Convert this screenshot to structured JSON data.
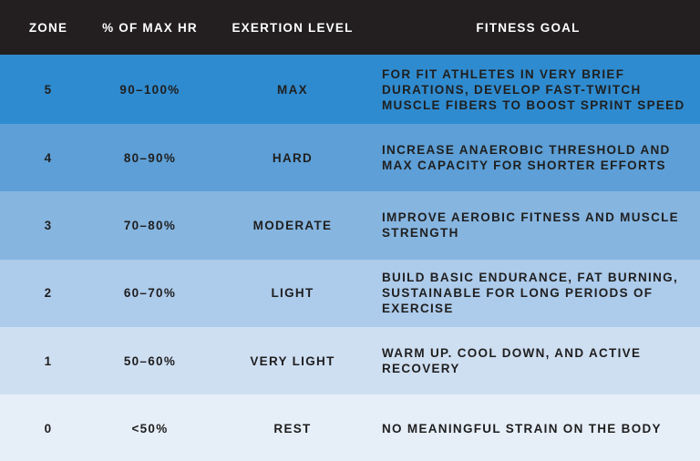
{
  "headers": {
    "zone": "ZONE",
    "max_hr": "% OF MAX HR",
    "exertion": "EXERTION LEVEL",
    "goal": "FITNESS GOAL"
  },
  "rows": [
    {
      "zone": "5",
      "max_hr": "90–100%",
      "exertion": "MAX",
      "goal": "FOR FIT ATHLETES IN VERY BRIEF DURATIONS, DEVELOP FAST-TWITCH MUSCLE FIBERS TO BOOST SPRINT SPEED"
    },
    {
      "zone": "4",
      "max_hr": "80–90%",
      "exertion": "HARD",
      "goal": "INCREASE ANAEROBIC THRESHOLD AND MAX CAPACITY FOR SHORTER EFFORTS"
    },
    {
      "zone": "3",
      "max_hr": "70–80%",
      "exertion": "MODERATE",
      "goal": "IMPROVE AEROBIC FITNESS AND MUSCLE STRENGTH"
    },
    {
      "zone": "2",
      "max_hr": "60–70%",
      "exertion": "LIGHT",
      "goal": "BUILD BASIC ENDURANCE, FAT BURNING, SUSTAINABLE FOR LONG PERIODS OF EXERCISE"
    },
    {
      "zone": "1",
      "max_hr": "50–60%",
      "exertion": "VERY LIGHT",
      "goal": "WARM UP. COOL DOWN, AND ACTIVE RECOVERY"
    },
    {
      "zone": "0",
      "max_hr": "<50%",
      "exertion": "REST",
      "goal": "NO MEANINGFUL STRAIN ON THE BODY"
    }
  ],
  "colors": {
    "header_bg": "#231f20",
    "header_text": "#ffffff",
    "body_text": "#1f1f1f",
    "zone5": "#2f8bcf",
    "zone4": "#5d9fd6",
    "zone3": "#86b5e0",
    "zone2": "#adcbeb",
    "zone1": "#cfdff2",
    "zone0": "#e6eef8"
  }
}
